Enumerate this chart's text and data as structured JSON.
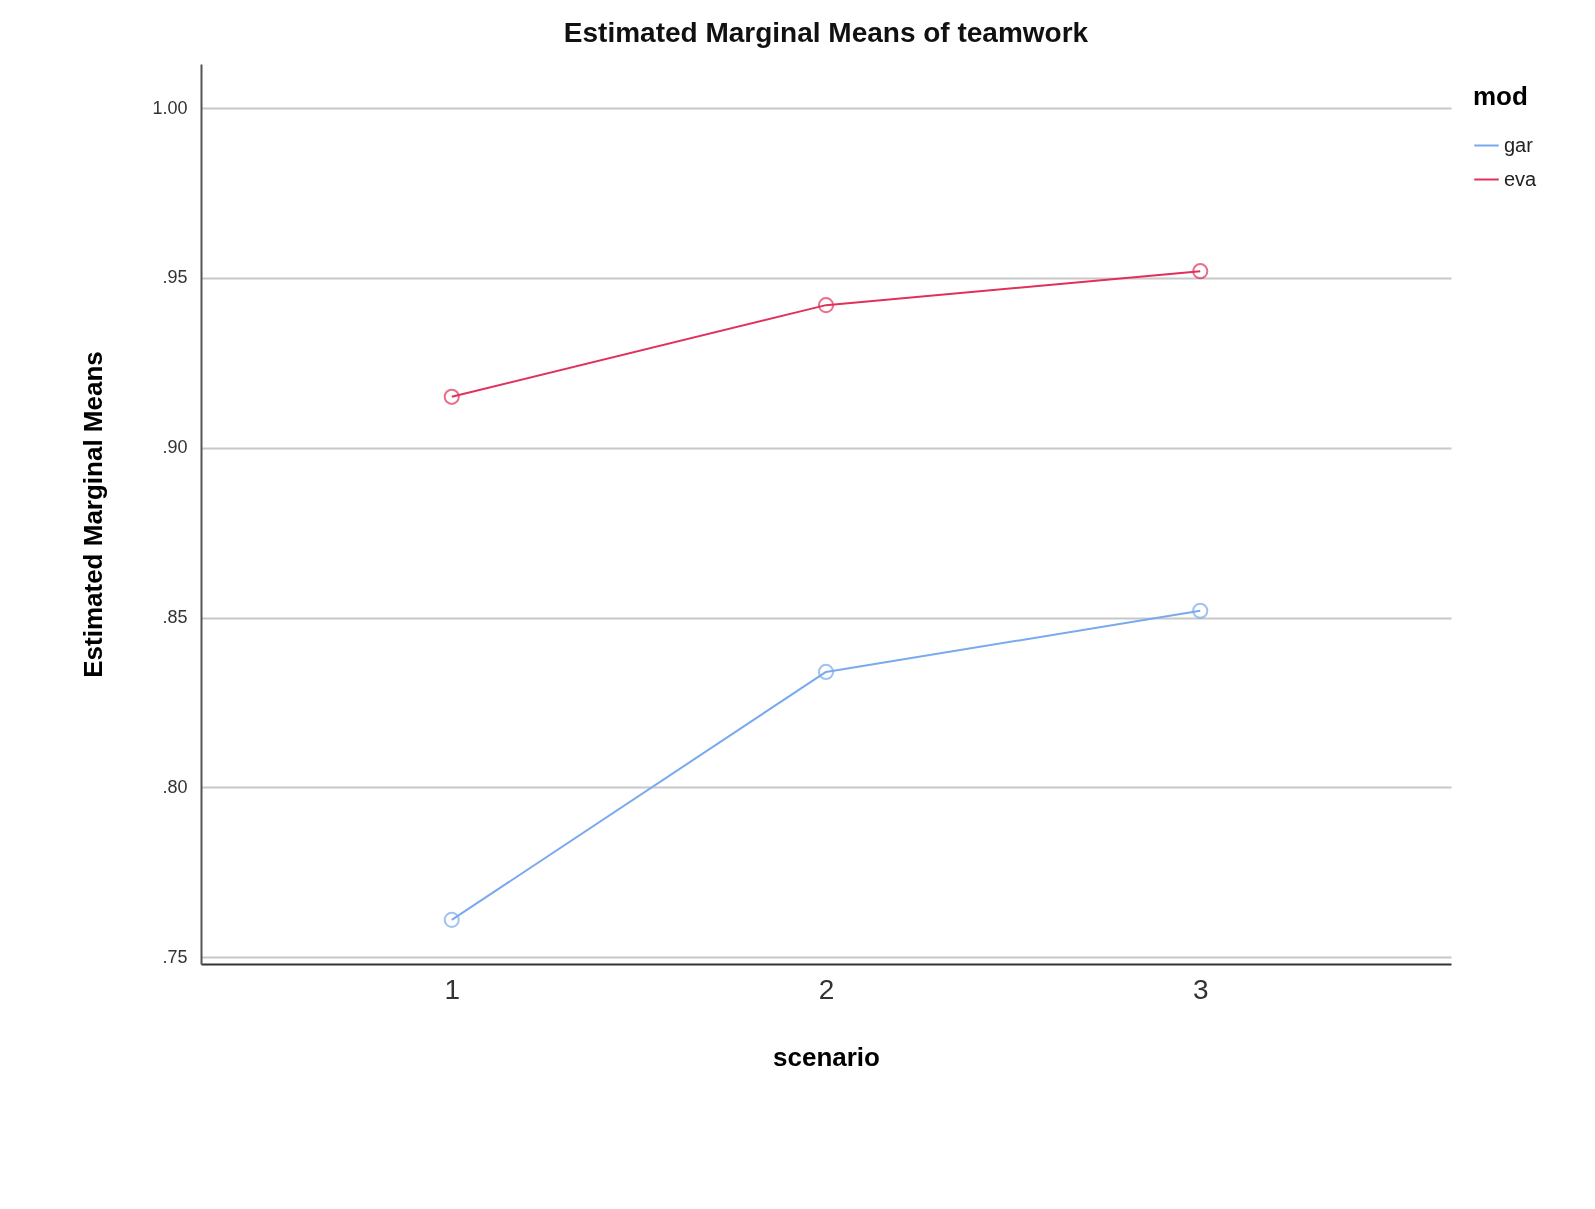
{
  "chart_data": {
    "type": "line",
    "title": "Estimated Marginal Means of teamwork",
    "xlabel": "scenario",
    "ylabel": "Estimated Marginal Means",
    "legend_title": "mod",
    "categories": [
      "1",
      "2",
      "3"
    ],
    "series": [
      {
        "name": "gar",
        "color": "#79a9ee",
        "values": [
          0.761,
          0.834,
          0.852
        ]
      },
      {
        "name": "eva",
        "color": "#e0315a",
        "values": [
          0.915,
          0.942,
          0.952
        ]
      }
    ],
    "ylim": [
      0.748,
      1.013
    ],
    "yticks": [
      {
        "value": 0.75,
        "label": ".75"
      },
      {
        "value": 0.8,
        "label": ".80"
      },
      {
        "value": 0.85,
        "label": ".85"
      },
      {
        "value": 0.9,
        "label": ".90"
      },
      {
        "value": 0.95,
        "label": ".95"
      },
      {
        "value": 1,
        "label": "1.00"
      }
    ],
    "grid": "y",
    "legend": "top right",
    "marker": "circle",
    "line_style": "solid"
  }
}
